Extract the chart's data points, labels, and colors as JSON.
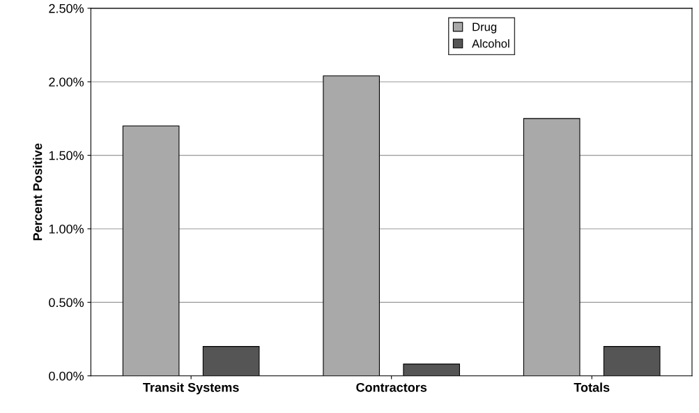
{
  "chart_data": {
    "type": "bar",
    "ylabel": "Percent Positive",
    "categories": [
      "Transit Systems",
      "Contractors",
      "Totals"
    ],
    "series": [
      {
        "name": "Drug",
        "color": "#a9a9a9",
        "values": [
          1.7,
          2.04,
          1.75
        ]
      },
      {
        "name": "Alcohol",
        "color": "#555555",
        "values": [
          0.2,
          0.08,
          0.2
        ]
      }
    ],
    "ylim": [
      0,
      2.5
    ],
    "yticks": [
      {
        "value": 0,
        "label": "0.00%"
      },
      {
        "value": 0.5,
        "label": "0.50%"
      },
      {
        "value": 1,
        "label": "1.00%"
      },
      {
        "value": 1.5,
        "label": "1.50%"
      },
      {
        "value": 2,
        "label": "2.00%"
      },
      {
        "value": 2.5,
        "label": "2.50%"
      }
    ],
    "grid": "y",
    "legend": "top center"
  }
}
